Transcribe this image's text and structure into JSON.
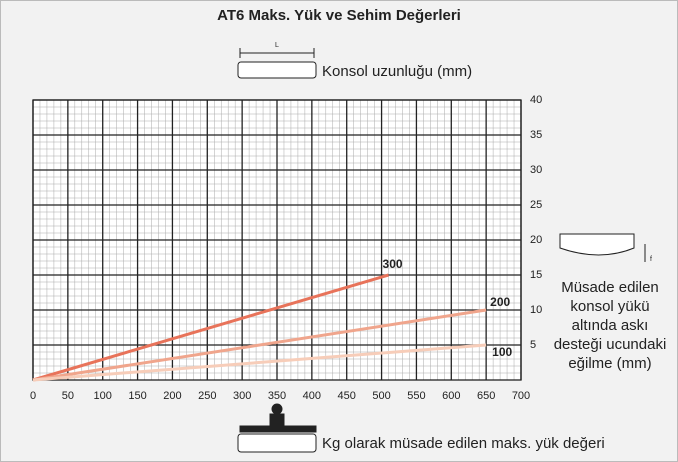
{
  "chart_data": {
    "type": "line",
    "title": "AT6 Maks. Yük ve Sehim Değerleri",
    "top_label": "Konsol uzunluğu (mm)",
    "beam_label": "L",
    "side_label": [
      "Müsade edilen",
      "konsol yükü",
      "altında askı",
      "desteği ucundaki",
      "eğilme (mm)"
    ],
    "deflection_label": "f",
    "bottom_label": "Kg olarak müsade edilen maks. yük değeri",
    "series": [
      {
        "name": "300",
        "color": "#e8735a",
        "x": [
          0,
          510
        ],
        "values": [
          0,
          15
        ]
      },
      {
        "name": "200",
        "color": "#f0a58c",
        "x": [
          0,
          650
        ],
        "values": [
          0,
          10
        ]
      },
      {
        "name": "100",
        "color": "#f7cdb9",
        "x": [
          0,
          650
        ],
        "values": [
          0,
          5
        ]
      }
    ],
    "xlim": [
      0,
      700
    ],
    "xticks": [
      0,
      50,
      100,
      150,
      200,
      250,
      300,
      350,
      400,
      450,
      500,
      550,
      600,
      650,
      700
    ],
    "ylim": [
      0,
      40
    ],
    "yticks": [
      5,
      10,
      15,
      20,
      25,
      30,
      35,
      40
    ],
    "grid": true
  }
}
